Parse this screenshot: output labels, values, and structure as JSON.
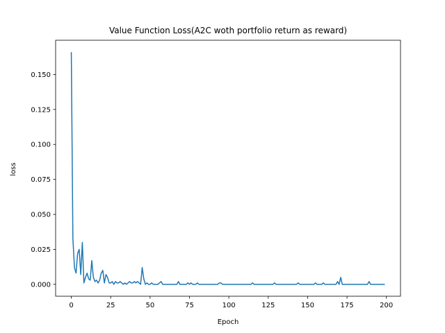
{
  "chart_data": {
    "type": "line",
    "title": "Value Function Loss(A2C woth portfolio return as reward)",
    "xlabel": "Epoch",
    "ylabel": "loss",
    "xlim": [
      -9.95,
      208.95
    ],
    "ylim": [
      -0.0085,
      0.1745
    ],
    "xticks": [
      0,
      25,
      50,
      75,
      100,
      125,
      150,
      175,
      200
    ],
    "yticks": [
      0.0,
      0.025,
      0.05,
      0.075,
      0.1,
      0.125,
      0.15
    ],
    "xtick_labels": [
      "0",
      "25",
      "50",
      "75",
      "100",
      "125",
      "150",
      "175",
      "200"
    ],
    "ytick_labels": [
      "0.000",
      "0.025",
      "0.050",
      "0.075",
      "0.100",
      "0.125",
      "0.150"
    ],
    "grid": false,
    "series": [
      {
        "color": "#1f77b4",
        "x": [
          0,
          1,
          2,
          3,
          4,
          5,
          6,
          7,
          8,
          9,
          10,
          11,
          12,
          13,
          14,
          15,
          16,
          17,
          18,
          19,
          20,
          21,
          22,
          23,
          24,
          25,
          26,
          27,
          28,
          29,
          30,
          31,
          32,
          33,
          34,
          35,
          36,
          37,
          38,
          39,
          40,
          41,
          42,
          43,
          44,
          45,
          46,
          47,
          48,
          49,
          50,
          51,
          52,
          53,
          54,
          55,
          56,
          57,
          58,
          59,
          60,
          61,
          62,
          63,
          64,
          65,
          66,
          67,
          68,
          69,
          70,
          71,
          72,
          73,
          74,
          75,
          76,
          77,
          78,
          79,
          80,
          81,
          82,
          83,
          84,
          85,
          86,
          87,
          88,
          89,
          90,
          91,
          92,
          93,
          94,
          95,
          96,
          97,
          98,
          99,
          100,
          101,
          102,
          103,
          104,
          105,
          106,
          107,
          108,
          109,
          110,
          111,
          112,
          113,
          114,
          115,
          116,
          117,
          118,
          119,
          120,
          121,
          122,
          123,
          124,
          125,
          126,
          127,
          128,
          129,
          130,
          131,
          132,
          133,
          134,
          135,
          136,
          137,
          138,
          139,
          140,
          141,
          142,
          143,
          144,
          145,
          146,
          147,
          148,
          149,
          150,
          151,
          152,
          153,
          154,
          155,
          156,
          157,
          158,
          159,
          160,
          161,
          162,
          163,
          164,
          165,
          166,
          167,
          168,
          169,
          170,
          171,
          172,
          173,
          174,
          175,
          176,
          177,
          178,
          179,
          180,
          181,
          182,
          183,
          184,
          185,
          186,
          187,
          188,
          189,
          190,
          191,
          192,
          193,
          194,
          195,
          196,
          197,
          198,
          199
        ],
        "y": [
          0.166,
          0.033,
          0.012,
          0.008,
          0.022,
          0.025,
          0.007,
          0.03,
          0.001,
          0.005,
          0.008,
          0.004,
          0.003,
          0.017,
          0.005,
          0.002,
          0.003,
          0.001,
          0.003,
          0.008,
          0.01,
          0.001,
          0.007,
          0.005,
          0.001,
          0.001,
          0.002,
          0.0,
          0.002,
          0.001,
          0.001,
          0.002,
          0.001,
          0.0,
          0.001,
          0.0,
          0.001,
          0.002,
          0.001,
          0.001,
          0.002,
          0.001,
          0.002,
          0.001,
          0.0,
          0.012,
          0.004,
          0.0,
          0.001,
          0.0,
          0.0,
          0.001,
          0.0,
          0.0,
          0.0,
          0.0,
          0.001,
          0.002,
          0.0,
          0.0,
          0.0,
          0.0,
          0.0,
          0.0,
          0.0,
          0.0,
          0.0,
          0.0,
          0.002,
          0.0,
          0.0,
          0.0,
          0.0,
          0.0,
          0.001,
          0.0,
          0.001,
          0.0,
          0.0,
          0.0,
          0.001,
          0.0,
          0.0,
          0.0,
          0.0,
          0.0,
          0.0,
          0.0,
          0.0,
          0.0,
          0.0,
          0.0,
          0.0,
          0.0,
          0.001,
          0.001,
          0.0,
          0.0,
          0.0,
          0.0,
          0.0,
          0.0,
          0.0,
          0.0,
          0.0,
          0.0,
          0.0,
          0.0,
          0.0,
          0.0,
          0.0,
          0.0,
          0.0,
          0.0,
          0.0,
          0.001,
          0.0,
          0.0,
          0.0,
          0.0,
          0.0,
          0.0,
          0.0,
          0.0,
          0.0,
          0.0,
          0.0,
          0.0,
          0.0,
          0.001,
          0.0,
          0.0,
          0.0,
          0.0,
          0.0,
          0.0,
          0.0,
          0.0,
          0.0,
          0.0,
          0.0,
          0.0,
          0.0,
          0.0,
          0.001,
          0.0,
          0.0,
          0.0,
          0.0,
          0.0,
          0.0,
          0.0,
          0.0,
          0.0,
          0.0,
          0.001,
          0.0,
          0.0,
          0.0,
          0.0,
          0.001,
          0.0,
          0.0,
          0.0,
          0.0,
          0.0,
          0.0,
          0.0,
          0.0,
          0.002,
          0.0,
          0.005,
          0.0,
          0.0,
          0.0,
          0.0,
          0.0,
          0.0,
          0.0,
          0.0,
          0.0,
          0.0,
          0.0,
          0.0,
          0.0,
          0.0,
          0.0,
          0.0,
          0.0,
          0.002,
          0.0,
          0.0,
          0.0,
          0.0,
          0.0,
          0.0,
          0.0,
          0.0,
          0.0,
          0.0
        ]
      }
    ]
  }
}
